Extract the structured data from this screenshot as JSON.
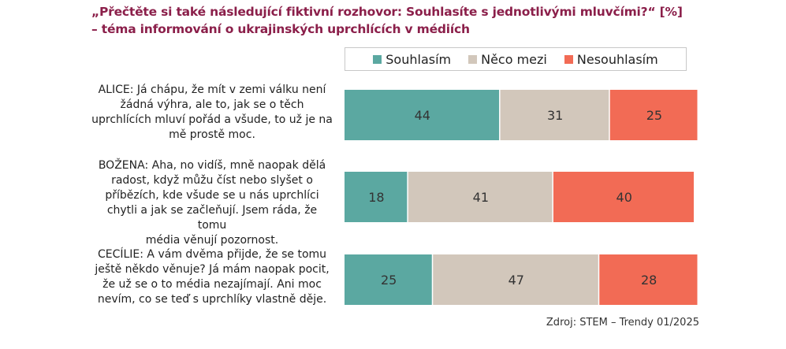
{
  "title_line1": "„Přečtěte si také následující fiktivní rozhovor: Souhlasíte s jednotlivými mluvčími?“ [%]",
  "title_line2": "– téma informování o ukrajinských uprchlících v médiích",
  "source": "Zdroj: STEM – Trendy 01/2025",
  "colors": {
    "agree": "#5ba8a1",
    "neutral": "#d2c7bb",
    "disagree": "#f26b55",
    "title": "#8b1f4a"
  },
  "chart_data": {
    "type": "bar",
    "orientation": "horizontal",
    "stacked": true,
    "categories": [
      "ALICE: Já chápu, že mít v zemi válku není žádná výhra, ale to, jak se o těch uprchlících mluví pořád a všude, to už je na mě prostě moc.",
      "BOŽENA: Aha, no vidíš, mně naopak dělá radost, když můžu číst nebo slyšet o příbězích, kde všude se u nás uprchlíci chytli a jak se začleňují. Jsem ráda, že tomu média věnují pozornost.",
      "CECÍLIE: A vám dvěma přijde, že se tomu ještě někdo věnuje? Já mám naopak pocit, že už se o to média nezajímají. Ani moc nevím, co se teď s uprchlíky vlastně děje."
    ],
    "category_lines": [
      [
        "ALICE: Já chápu, že mít v zemi válku není",
        "žádná výhra, ale to, jak se o těch",
        "uprchlících mluví pořád a všude, to už je na",
        "mě prostě moc."
      ],
      [
        "BOŽENA: Aha, no vidíš, mně naopak dělá",
        "radost, když můžu číst nebo slyšet o",
        "příbězích, kde všude se u nás uprchlíci",
        "chytli a jak se začleňují. Jsem ráda, že tomu",
        "média věnují pozornost."
      ],
      [
        "CECÍLIE: A vám dvěma přijde, že se tomu",
        "ještě někdo věnuje? Já mám naopak pocit,",
        "že už se o to média nezajímají. Ani moc",
        "nevím, co se teď s uprchlíky vlastně děje."
      ]
    ],
    "series": [
      {
        "name": "Souhlasím",
        "values": [
          44,
          18,
          25
        ]
      },
      {
        "name": "Něco mezi",
        "values": [
          31,
          41,
          47
        ]
      },
      {
        "name": "Nesouhlasím",
        "values": [
          25,
          40,
          28
        ]
      }
    ],
    "xlim": [
      0,
      100
    ],
    "legend_position": "top",
    "grid": false
  }
}
